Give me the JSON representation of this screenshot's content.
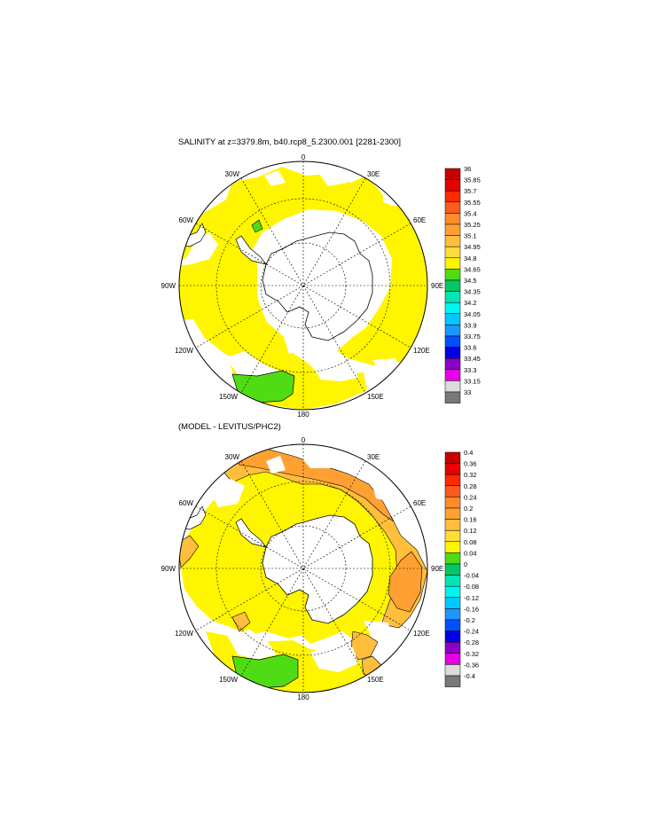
{
  "panels": [
    {
      "title": "SALINITY at z=3379.8m, b40.rcp8_5.2300.001 [2281-2300]",
      "colorbar": {
        "labels": [
          "36",
          "35.85",
          "35.7",
          "35.55",
          "35.4",
          "35.25",
          "35.1",
          "34.95",
          "34.8",
          "34.65",
          "34.5",
          "34.35",
          "34.2",
          "34.05",
          "33.9",
          "33.75",
          "33.6",
          "33.45",
          "33.3",
          "33.15",
          "33"
        ],
        "colors": [
          "#c80000",
          "#e60000",
          "#ff2a00",
          "#ff5a1e",
          "#ff8c28",
          "#ffa032",
          "#ffbe3c",
          "#ffdc3c",
          "#fff500",
          "#50dc14",
          "#00c864",
          "#00e6b4",
          "#00f5f0",
          "#00c8ff",
          "#1e96ff",
          "#0050ff",
          "#0000e6",
          "#8c00c8",
          "#e600e6",
          "#dcdcdc",
          "#787878"
        ]
      }
    },
    {
      "title": "(MODEL - LEVITUS/PHC2)",
      "colorbar": {
        "labels": [
          "0.4",
          "0.36",
          "0.32",
          "0.28",
          "0.24",
          "0.2",
          "0.16",
          "0.12",
          "0.08",
          "0.04",
          "0",
          "-0.04",
          "-0.08",
          "-0.12",
          "-0.16",
          "-0.2",
          "-0.24",
          "-0.28",
          "-0.32",
          "-0.36",
          "-0.4"
        ],
        "colors": [
          "#c80000",
          "#e60000",
          "#ff2a00",
          "#ff5a1e",
          "#ff8c28",
          "#ffa032",
          "#ffbe3c",
          "#ffdc3c",
          "#fff500",
          "#50dc14",
          "#00c864",
          "#00e6b4",
          "#00f5f0",
          "#00c8ff",
          "#1e96ff",
          "#0050ff",
          "#0000e6",
          "#8c00c8",
          "#e600e6",
          "#dcdcdc",
          "#787878"
        ]
      }
    }
  ],
  "longitude_labels": [
    "0",
    "30E",
    "60E",
    "90E",
    "120E",
    "150E",
    "180",
    "150W",
    "120W",
    "90W",
    "60W",
    "30W"
  ]
}
